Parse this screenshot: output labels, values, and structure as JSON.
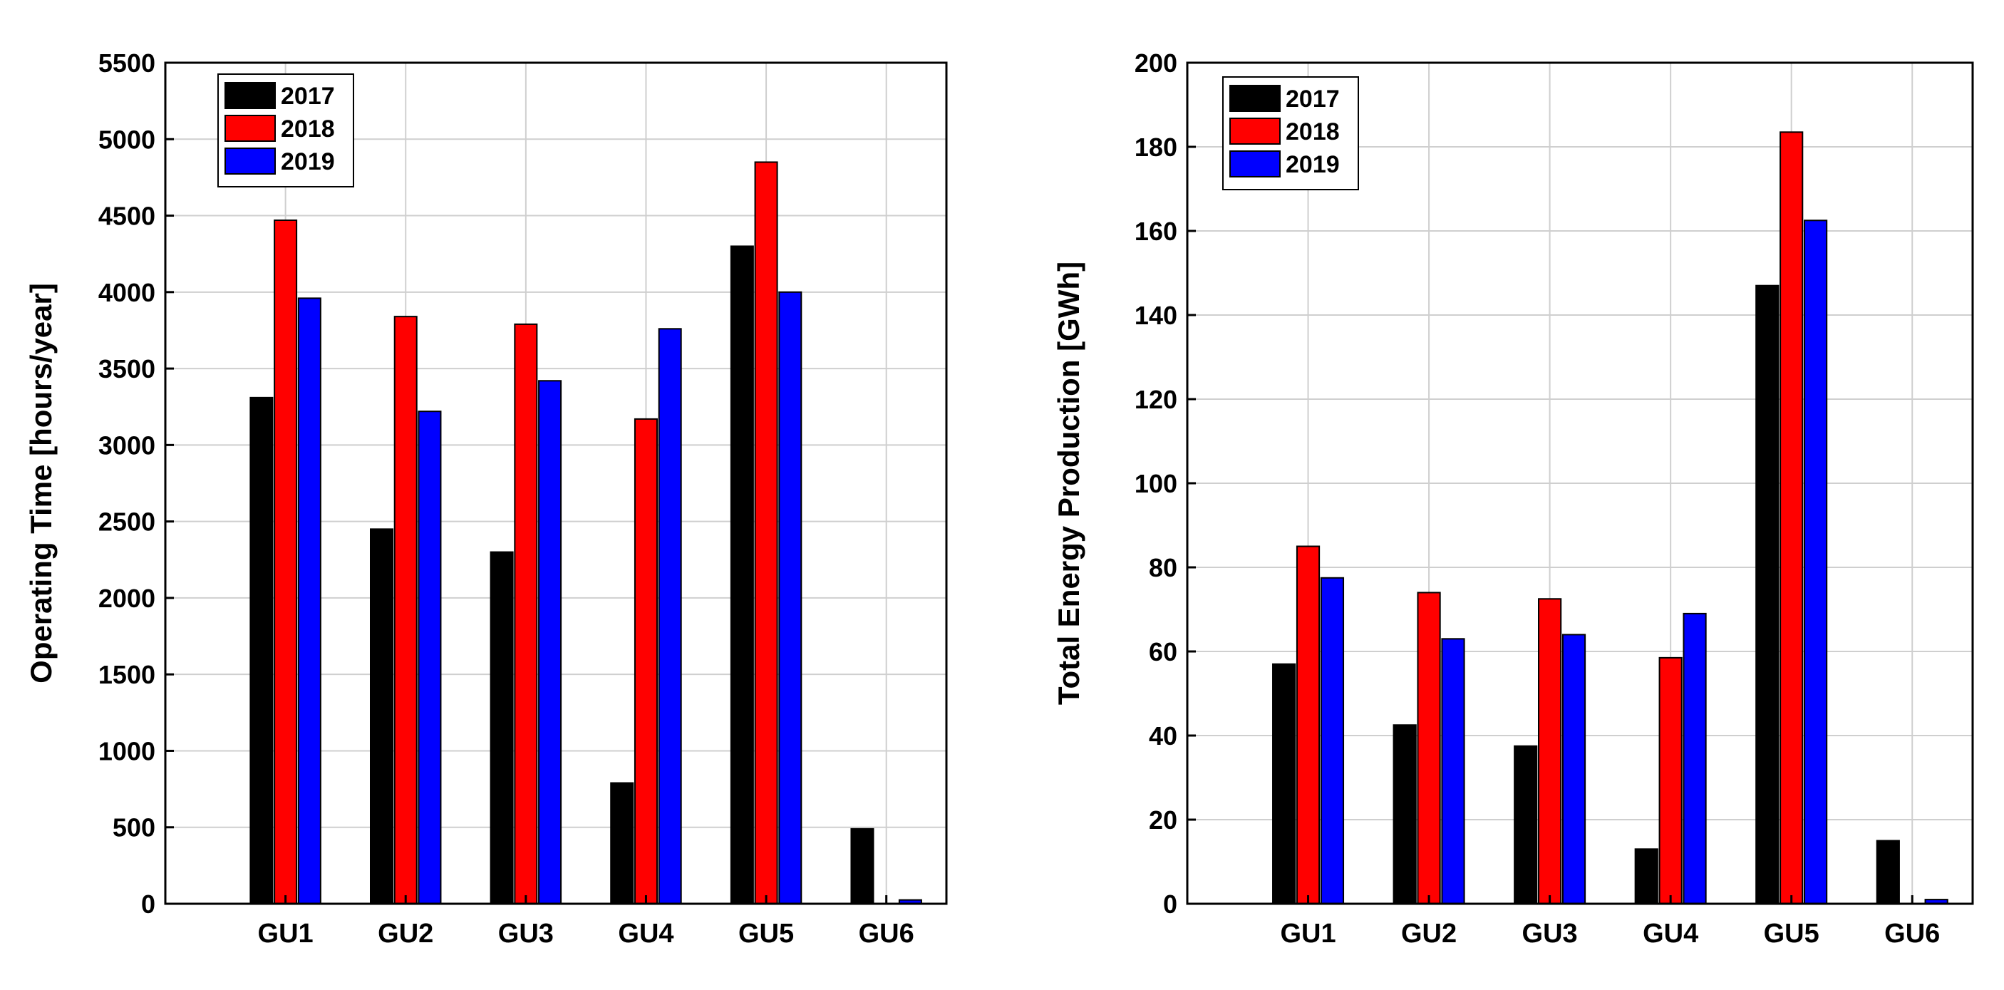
{
  "colors": {
    "2017": "#000000",
    "2018": "#ff0000",
    "2019": "#0000ff",
    "grid": "#cfcfcf",
    "axis": "#000000"
  },
  "chart_data": [
    {
      "type": "bar",
      "title": "",
      "xlabel": "",
      "ylabel": "Operating Time [hours/year]",
      "ylim": [
        0,
        5500
      ],
      "yticks": [
        0,
        500,
        1000,
        1500,
        2000,
        2500,
        3000,
        3500,
        4000,
        4500,
        5000,
        5500
      ],
      "categories": [
        "GU1",
        "GU2",
        "GU3",
        "GU4",
        "GU5",
        "GU6"
      ],
      "xlim": [
        0,
        6.5
      ],
      "grid": true,
      "legend_position": "top-left",
      "series": [
        {
          "name": "2017",
          "color": "#000000",
          "values": [
            3310,
            2450,
            2300,
            790,
            4300,
            490
          ]
        },
        {
          "name": "2018",
          "color": "#ff0000",
          "values": [
            4470,
            3840,
            3790,
            3170,
            4850,
            0
          ]
        },
        {
          "name": "2019",
          "color": "#0000ff",
          "values": [
            3960,
            3220,
            3420,
            3760,
            4000,
            25
          ]
        }
      ]
    },
    {
      "type": "bar",
      "title": "",
      "xlabel": "",
      "ylabel": "Total Energy Production [GWh]",
      "ylim": [
        0,
        200
      ],
      "yticks": [
        0,
        20,
        40,
        60,
        80,
        100,
        120,
        140,
        160,
        180,
        200
      ],
      "categories": [
        "GU1",
        "GU2",
        "GU3",
        "GU4",
        "GU5",
        "GU6"
      ],
      "xlim": [
        0,
        6.5
      ],
      "grid": true,
      "legend_position": "top-left",
      "series": [
        {
          "name": "2017",
          "color": "#000000",
          "values": [
            57,
            42.5,
            37.5,
            13,
            147,
            15
          ]
        },
        {
          "name": "2018",
          "color": "#ff0000",
          "values": [
            85,
            74,
            72.5,
            58.5,
            183.5,
            0
          ]
        },
        {
          "name": "2019",
          "color": "#0000ff",
          "values": [
            77.5,
            63,
            64,
            69,
            162.5,
            1
          ]
        }
      ]
    }
  ]
}
